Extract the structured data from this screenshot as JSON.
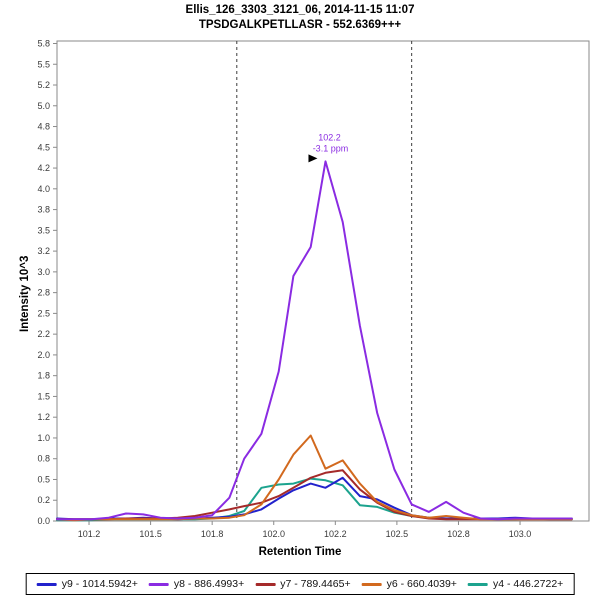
{
  "header": {
    "title": "Ellis_126_3303_3121_06, 2014-11-15 11:07",
    "subtitle": "TPSDGALKPETLLASR - 552.6369+++"
  },
  "axes": {
    "x_label": "Retention Time",
    "y_label": "Intensity 10^3",
    "x_ticks": [
      {
        "v": 101.25,
        "label": "101.2"
      },
      {
        "v": 101.5,
        "label": "101.5"
      },
      {
        "v": 101.75,
        "label": "101.8"
      },
      {
        "v": 102.0,
        "label": "102.0"
      },
      {
        "v": 102.25,
        "label": "102.2"
      },
      {
        "v": 102.5,
        "label": "102.5"
      },
      {
        "v": 102.75,
        "label": "102.8"
      },
      {
        "v": 103.0,
        "label": "103.0"
      }
    ],
    "y_ticks": [
      {
        "v": 0.0,
        "label": "0.0"
      },
      {
        "v": 0.25,
        "label": "0.2"
      },
      {
        "v": 0.5,
        "label": "0.5"
      },
      {
        "v": 0.75,
        "label": "0.8"
      },
      {
        "v": 1.0,
        "label": "1.0"
      },
      {
        "v": 1.25,
        "label": "1.2"
      },
      {
        "v": 1.5,
        "label": "1.5"
      },
      {
        "v": 1.75,
        "label": "1.8"
      },
      {
        "v": 2.0,
        "label": "2.0"
      },
      {
        "v": 2.25,
        "label": "2.2"
      },
      {
        "v": 2.5,
        "label": "2.5"
      },
      {
        "v": 2.75,
        "label": "2.8"
      },
      {
        "v": 3.0,
        "label": "3.0"
      },
      {
        "v": 3.25,
        "label": "3.2"
      },
      {
        "v": 3.5,
        "label": "3.5"
      },
      {
        "v": 3.75,
        "label": "3.8"
      },
      {
        "v": 4.0,
        "label": "4.0"
      },
      {
        "v": 4.25,
        "label": "4.2"
      },
      {
        "v": 4.5,
        "label": "4.5"
      },
      {
        "v": 4.75,
        "label": "4.8"
      },
      {
        "v": 5.0,
        "label": "5.0"
      },
      {
        "v": 5.25,
        "label": "5.2"
      },
      {
        "v": 5.5,
        "label": "5.5"
      },
      {
        "v": 5.75,
        "label": "5.8"
      }
    ]
  },
  "chart_data": {
    "type": "line",
    "title": "Ellis_126_3303_3121_06, 2014-11-15 11:07",
    "subtitle": "TPSDGALKPETLLASR - 552.6369+++",
    "xlabel": "Retention Time",
    "ylabel": "Intensity 10^3",
    "xlim": [
      101.12,
      103.28
    ],
    "ylim": [
      0,
      5.78
    ],
    "grid": false,
    "legend_position": "bottom",
    "peak_boundaries": [
      101.85,
      102.56
    ],
    "annotation": {
      "rt_label": "102.2",
      "ppm_label": "-3.1 ppm",
      "x": 102.21,
      "y": 4.33,
      "color": "#8a2be2"
    },
    "x": [
      101.12,
      101.19,
      101.26,
      101.33,
      101.4,
      101.47,
      101.54,
      101.61,
      101.68,
      101.75,
      101.82,
      101.88,
      101.95,
      102.02,
      102.08,
      102.15,
      102.21,
      102.28,
      102.35,
      102.42,
      102.49,
      102.56,
      102.63,
      102.7,
      102.77,
      102.84,
      102.91,
      102.98,
      103.05,
      103.12,
      103.21
    ],
    "series": [
      {
        "id": "y9",
        "name": "y9 - 1014.5942+",
        "color": "#2222cc",
        "values": [
          0.03,
          0.02,
          0.02,
          0.03,
          0.03,
          0.04,
          0.03,
          0.02,
          0.03,
          0.04,
          0.05,
          0.08,
          0.14,
          0.27,
          0.37,
          0.45,
          0.4,
          0.52,
          0.3,
          0.26,
          0.16,
          0.07,
          0.04,
          0.03,
          0.03,
          0.03,
          0.03,
          0.04,
          0.03,
          0.02,
          0.02
        ]
      },
      {
        "id": "y8",
        "name": "y8 - 886.4993+",
        "color": "#8a2be2",
        "values": [
          0.02,
          0.02,
          0.02,
          0.04,
          0.09,
          0.08,
          0.04,
          0.03,
          0.04,
          0.07,
          0.28,
          0.75,
          1.05,
          1.8,
          2.95,
          3.3,
          4.33,
          3.6,
          2.35,
          1.3,
          0.62,
          0.2,
          0.11,
          0.23,
          0.1,
          0.03,
          0.02,
          0.03,
          0.03,
          0.03,
          0.03
        ]
      },
      {
        "id": "y7",
        "name": "y7 - 789.4465+",
        "color": "#a52a2a",
        "values": [
          0.02,
          0.02,
          0.02,
          0.02,
          0.03,
          0.03,
          0.03,
          0.04,
          0.06,
          0.1,
          0.14,
          0.18,
          0.22,
          0.3,
          0.4,
          0.52,
          0.58,
          0.61,
          0.38,
          0.22,
          0.11,
          0.06,
          0.03,
          0.02,
          0.02,
          0.02,
          0.02,
          0.02,
          0.02,
          0.02,
          0.02
        ]
      },
      {
        "id": "y6",
        "name": "y6 - 660.4039+",
        "color": "#d2691e",
        "values": [
          0.02,
          0.01,
          0.02,
          0.02,
          0.02,
          0.02,
          0.02,
          0.02,
          0.03,
          0.03,
          0.04,
          0.07,
          0.2,
          0.5,
          0.8,
          1.03,
          0.63,
          0.73,
          0.45,
          0.23,
          0.13,
          0.07,
          0.04,
          0.06,
          0.04,
          0.02,
          0.02,
          0.02,
          0.02,
          0.02,
          0.02
        ]
      },
      {
        "id": "y4",
        "name": "y4 - 446.2722+",
        "color": "#1ca38e",
        "values": [
          0.01,
          0.01,
          0.01,
          0.02,
          0.02,
          0.02,
          0.02,
          0.02,
          0.02,
          0.03,
          0.06,
          0.12,
          0.4,
          0.44,
          0.45,
          0.51,
          0.49,
          0.43,
          0.19,
          0.17,
          0.1,
          0.06,
          0.04,
          0.03,
          0.03,
          0.03,
          0.02,
          0.02,
          0.03,
          0.03,
          0.03
        ]
      }
    ],
    "z_order": [
      4,
      0,
      2,
      3,
      1
    ]
  }
}
